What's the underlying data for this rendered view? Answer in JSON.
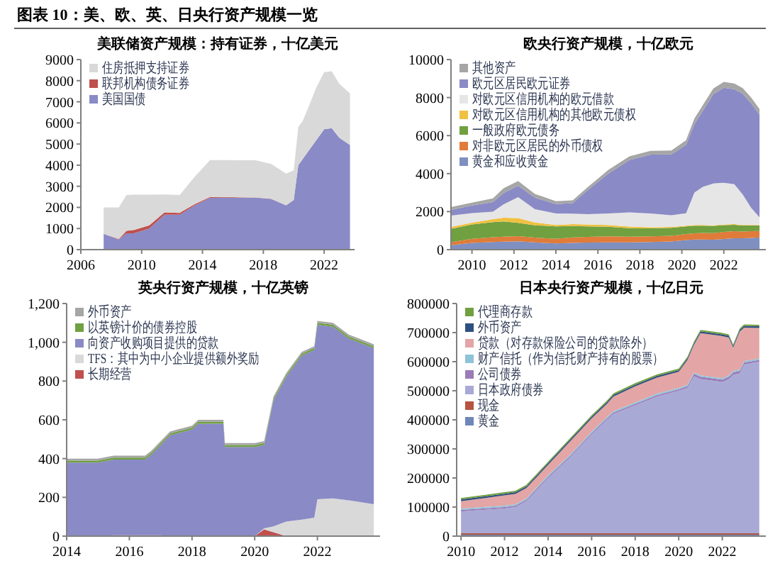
{
  "chart_data": [
    {
      "type": "area",
      "stacked": true,
      "annotations": [
        "图表 10：美、欧、英、日央行资产规模一览"
      ],
      "title": "美联储资产规模：持有证券，十亿美元",
      "legend": "top left",
      "x": [
        2007.5,
        2008.5,
        2009.0,
        2009.5,
        2010.5,
        2011.5,
        2012.5,
        2013.5,
        2014.5,
        2015.5,
        2016.5,
        2017.5,
        2018.5,
        2019.5,
        2020.0,
        2020.3,
        2020.6,
        2021.0,
        2021.5,
        2022.0,
        2022.5,
        2023.0,
        2023.7
      ],
      "xlim": [
        2006,
        2024
      ],
      "xticks": [
        2006,
        2010,
        2014,
        2018,
        2022
      ],
      "ylim": [
        0,
        9000
      ],
      "yticks": [
        0,
        1000,
        2000,
        3000,
        4000,
        5000,
        6000,
        7000,
        8000,
        9000
      ],
      "series": [
        {
          "name": "美国国债",
          "color": "#8a8ac6",
          "values": [
            750,
            480,
            770,
            770,
            1000,
            1650,
            1650,
            2100,
            2450,
            2460,
            2460,
            2460,
            2400,
            2100,
            2350,
            4000,
            4300,
            4700,
            5200,
            5700,
            5750,
            5300,
            4950
          ]
        },
        {
          "name": "联邦机构债务证券",
          "color": "#c0504d",
          "values": [
            0,
            20,
            120,
            160,
            150,
            110,
            90,
            60,
            40,
            30,
            20,
            10,
            10,
            0,
            0,
            0,
            0,
            0,
            0,
            0,
            0,
            0,
            0
          ]
        },
        {
          "name": "住房抵押支持证券",
          "color": "#d9d9d9",
          "values": [
            1250,
            1500,
            1700,
            1670,
            1450,
            850,
            850,
            1300,
            1750,
            1750,
            1750,
            1760,
            1650,
            1500,
            1400,
            1800,
            1800,
            2100,
            2500,
            2700,
            2700,
            2550,
            2450
          ]
        }
      ]
    },
    {
      "type": "area",
      "stacked": true,
      "title": "欧央行资产规模，十亿欧元",
      "legend": "top left",
      "x": [
        2009,
        2010,
        2011,
        2011.5,
        2012.2,
        2013,
        2014,
        2014.8,
        2015.5,
        2016.5,
        2017.5,
        2018.5,
        2019.5,
        2020.2,
        2020.6,
        2021,
        2021.5,
        2022,
        2022.5,
        2022.9,
        2023.3,
        2023.7
      ],
      "xlim": [
        2009,
        2024
      ],
      "xticks": [
        2010,
        2012,
        2014,
        2016,
        2018,
        2020,
        2022
      ],
      "ylim": [
        0,
        10000
      ],
      "yticks": [
        0,
        2000,
        4000,
        6000,
        8000,
        10000
      ],
      "series": [
        {
          "name": "黄金和应收黄金",
          "color": "#7f8fc0",
          "values": [
            230,
            350,
            400,
            420,
            440,
            380,
            330,
            350,
            370,
            380,
            380,
            400,
            430,
            500,
            530,
            530,
            520,
            560,
            600,
            600,
            620,
            640
          ]
        },
        {
          "name": "对非欧元区居民的外币债权",
          "color": "#e07b39",
          "values": [
            160,
            220,
            250,
            260,
            270,
            250,
            240,
            290,
            300,
            320,
            300,
            300,
            300,
            320,
            330,
            350,
            350,
            370,
            370,
            350,
            350,
            340
          ]
        },
        {
          "name": "一般政府欧元债务",
          "color": "#70a040",
          "values": [
            700,
            750,
            800,
            800,
            700,
            650,
            650,
            600,
            550,
            500,
            450,
            420,
            420,
            400,
            400,
            380,
            380,
            360,
            340,
            320,
            300,
            290
          ]
        },
        {
          "name": "对欧元区信用机构的其他欧元债权",
          "color": "#f0c040",
          "values": [
            100,
            100,
            150,
            200,
            250,
            150,
            80,
            100,
            100,
            100,
            80,
            60,
            40,
            40,
            40,
            40,
            30,
            30,
            30,
            30,
            30,
            30
          ]
        },
        {
          "name": "对欧元区信用机构的欧元借款",
          "color": "#e6e6e6",
          "values": [
            600,
            500,
            400,
            700,
            1100,
            700,
            600,
            550,
            550,
            600,
            750,
            720,
            620,
            650,
            1700,
            2000,
            2200,
            2200,
            2100,
            1600,
            900,
            400
          ]
        },
        {
          "name": "欧元区居民欧元证券",
          "color": "#8a8ac6",
          "values": [
            300,
            400,
            500,
            600,
            600,
            600,
            500,
            550,
            1250,
            2100,
            2750,
            3100,
            3200,
            3600,
            3600,
            4000,
            4700,
            5000,
            5000,
            5300,
            5500,
            5400
          ]
        },
        {
          "name": "其他资产",
          "color": "#a6a6a6",
          "values": [
            150,
            150,
            200,
            250,
            250,
            200,
            150,
            150,
            150,
            200,
            200,
            200,
            200,
            250,
            300,
            300,
            300,
            300,
            300,
            300,
            300,
            300
          ]
        }
      ]
    },
    {
      "type": "area",
      "stacked": true,
      "title": "英央行资产规模，十亿英镑",
      "legend": "top left",
      "x": [
        2014,
        2015,
        2015.5,
        2016.5,
        2016.7,
        2017,
        2017.3,
        2018,
        2018.2,
        2019,
        2019.05,
        2020,
        2020.3,
        2020.6,
        2021,
        2021.5,
        2021.9,
        2022,
        2022.5,
        2023,
        2023.8
      ],
      "xlim": [
        2014,
        2024
      ],
      "xticks": [
        2014,
        2016,
        2018,
        2020,
        2022
      ],
      "ylim": [
        0,
        1200
      ],
      "yticks": [
        0,
        200,
        400,
        600,
        800,
        {
          "value": 1000,
          "label": "1,000"
        },
        {
          "value": 1200,
          "label": "1,200"
        }
      ],
      "series": [
        {
          "name": "长期经营",
          "color": "#c0504d",
          "values": [
            0,
            0,
            5,
            5,
            5,
            5,
            0,
            0,
            0,
            0,
            0,
            0,
            35,
            20,
            0,
            0,
            0,
            0,
            0,
            0,
            0
          ]
        },
        {
          "name": "TFS：其中为中小企业提供额外奖励",
          "color": "#d9d9d9",
          "values": [
            0,
            0,
            0,
            0,
            0,
            0,
            0,
            0,
            0,
            0,
            0,
            0,
            5,
            30,
            75,
            85,
            95,
            190,
            195,
            185,
            165
          ]
        },
        {
          "name": "向资产收购项目提供的贷款",
          "color": "#8a8ac6",
          "values": [
            380,
            380,
            390,
            390,
            415,
            465,
            520,
            550,
            580,
            580,
            460,
            460,
            430,
            650,
            745,
            845,
            865,
            900,
            885,
            835,
            805
          ]
        },
        {
          "name": "以英镑计价的债券控股",
          "color": "#70a040",
          "values": [
            10,
            10,
            10,
            10,
            10,
            10,
            10,
            10,
            10,
            10,
            10,
            10,
            10,
            10,
            10,
            10,
            10,
            10,
            10,
            10,
            10
          ]
        },
        {
          "name": "外币资产",
          "color": "#a6a6a6",
          "values": [
            10,
            10,
            10,
            10,
            10,
            10,
            10,
            10,
            10,
            10,
            10,
            10,
            10,
            10,
            10,
            10,
            10,
            10,
            10,
            10,
            10
          ]
        }
      ]
    },
    {
      "type": "area",
      "stacked": true,
      "title": "日本央行资产规模，十亿日元",
      "legend": "top left",
      "x": [
        2010,
        2011,
        2012,
        2012.5,
        2013,
        2013.5,
        2014,
        2015,
        2016,
        2016.7,
        2017,
        2018,
        2019,
        2020,
        2020.4,
        2020.7,
        2021,
        2022,
        2022.3,
        2022.5,
        2022.8,
        2023,
        2023.7
      ],
      "xlim": [
        2009.8,
        2024
      ],
      "xticks": [
        2010,
        2012,
        2014,
        2016,
        2018,
        2020,
        2022
      ],
      "ylim": [
        0,
        800000
      ],
      "yticks": [
        0,
        100000,
        200000,
        300000,
        400000,
        500000,
        600000,
        700000,
        800000
      ],
      "series": [
        {
          "name": "黄金",
          "color": "#6f86b8",
          "values": [
            5000,
            5000,
            5000,
            5000,
            5000,
            5000,
            5000,
            5000,
            5000,
            5000,
            5000,
            5000,
            5000,
            5000,
            5000,
            5000,
            5000,
            5000,
            5000,
            5000,
            5000,
            5000,
            5000
          ]
        },
        {
          "name": "现金",
          "color": "#b5543f",
          "values": [
            5000,
            5000,
            5000,
            5000,
            5000,
            5000,
            5000,
            5000,
            5000,
            5000,
            5000,
            5000,
            5000,
            5000,
            5000,
            5000,
            5000,
            5000,
            5000,
            5000,
            5000,
            5000,
            5000
          ]
        },
        {
          "name": "日本政府债券",
          "color": "#a9a9d6",
          "values": [
            75000,
            80000,
            85000,
            90000,
            110000,
            150000,
            190000,
            260000,
            340000,
            390000,
            410000,
            440000,
            470000,
            490000,
            500000,
            540000,
            530000,
            520000,
            530000,
            545000,
            550000,
            580000,
            590000
          ]
        },
        {
          "name": "公司债券",
          "color": "#9b7bb8",
          "values": [
            5000,
            5000,
            5000,
            5000,
            5000,
            5000,
            5000,
            5000,
            5000,
            5000,
            5000,
            5000,
            5000,
            5000,
            6000,
            8000,
            8000,
            8000,
            8000,
            8000,
            8000,
            7000,
            6000
          ]
        },
        {
          "name": "财产信托（作为信托财产持有的股票）",
          "color": "#8fc3d9",
          "values": [
            5000,
            5000,
            5000,
            5000,
            5000,
            5000,
            5000,
            5000,
            5000,
            5000,
            5000,
            5000,
            5000,
            5000,
            5000,
            5000,
            5000,
            5000,
            5000,
            5000,
            5000,
            5000,
            5000
          ]
        },
        {
          "name": "贷款（对存款保险公司的贷款除外）",
          "color": "#e3a5a5",
          "values": [
            25000,
            30000,
            35000,
            35000,
            35000,
            35000,
            35000,
            45000,
            45000,
            45000,
            50000,
            55000,
            55000,
            55000,
            85000,
            95000,
            145000,
            145000,
            130000,
            80000,
            130000,
            115000,
            105000
          ]
        },
        {
          "name": "外币资产",
          "color": "#2f4f7f",
          "values": [
            6000,
            6000,
            6000,
            6000,
            6000,
            6000,
            6000,
            6000,
            6000,
            6000,
            6000,
            6000,
            6000,
            6000,
            6000,
            6000,
            6000,
            6000,
            6000,
            6000,
            6000,
            6000,
            6000
          ]
        },
        {
          "name": "代理商存款",
          "color": "#70a040",
          "values": [
            5000,
            5000,
            5000,
            5000,
            5000,
            5000,
            5000,
            5000,
            5000,
            5000,
            5000,
            5000,
            5000,
            5000,
            5000,
            5000,
            5000,
            5000,
            5000,
            5000,
            5000,
            5000,
            5000
          ]
        }
      ]
    }
  ]
}
